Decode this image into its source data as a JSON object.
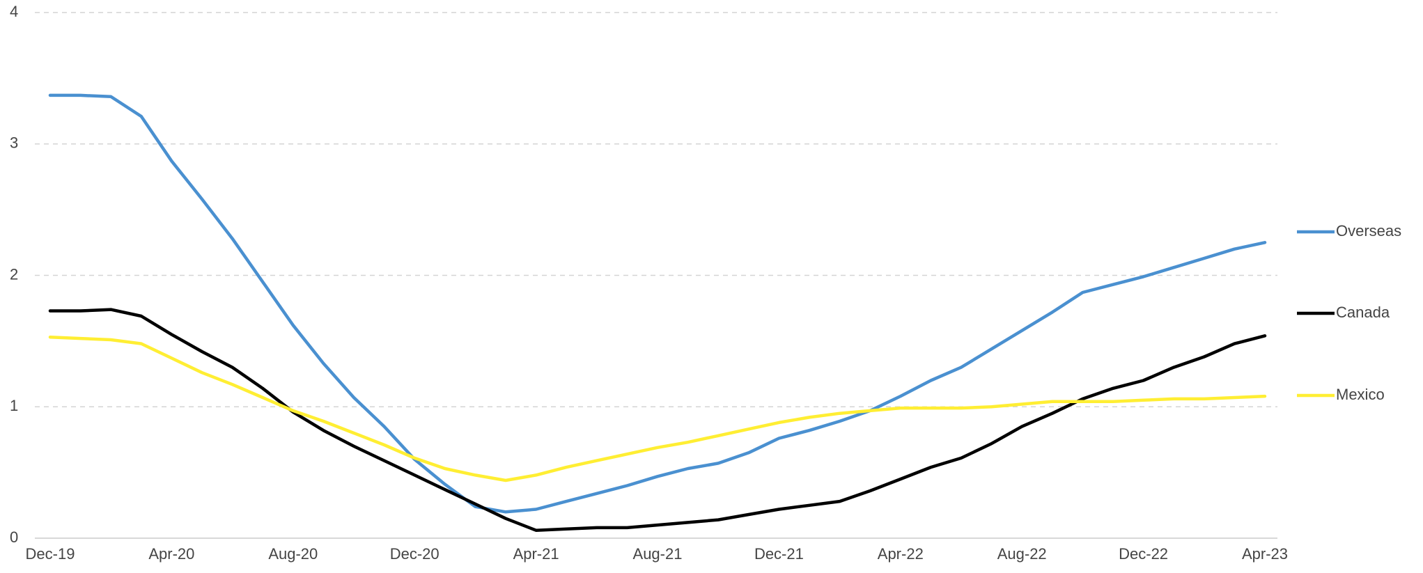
{
  "chart_data": {
    "type": "line",
    "categories": [
      "Dec-19",
      null,
      null,
      null,
      "Apr-20",
      null,
      null,
      null,
      "Aug-20",
      null,
      null,
      null,
      "Dec-20",
      null,
      null,
      null,
      "Apr-21",
      null,
      null,
      null,
      "Aug-21",
      null,
      null,
      null,
      "Dec-21",
      null,
      null,
      null,
      "Apr-22",
      null,
      null,
      null,
      "Aug-22",
      null,
      null,
      null,
      "Dec-22",
      null,
      null,
      null,
      "Apr-23"
    ],
    "series": [
      {
        "name": "Overseas",
        "color": "#4a90d0",
        "values": [
          3.37,
          3.37,
          3.36,
          3.21,
          2.87,
          2.58,
          2.28,
          1.95,
          1.62,
          1.33,
          1.07,
          0.85,
          0.6,
          0.41,
          0.24,
          0.2,
          0.22,
          0.28,
          0.34,
          0.4,
          0.47,
          0.53,
          0.57,
          0.65,
          0.76,
          0.82,
          0.89,
          0.97,
          1.08,
          1.2,
          1.3,
          1.44,
          1.58,
          1.72,
          1.87,
          1.93,
          1.99,
          2.06,
          2.13,
          2.2,
          2.25
        ]
      },
      {
        "name": "Canada",
        "color": "#000000",
        "values": [
          1.73,
          1.73,
          1.74,
          1.69,
          1.55,
          1.42,
          1.3,
          1.14,
          0.96,
          0.82,
          0.7,
          0.59,
          0.48,
          0.37,
          0.26,
          0.15,
          0.06,
          0.07,
          0.08,
          0.08,
          0.1,
          0.12,
          0.14,
          0.18,
          0.22,
          0.25,
          0.28,
          0.36,
          0.45,
          0.54,
          0.61,
          0.72,
          0.85,
          0.95,
          1.06,
          1.14,
          1.2,
          1.3,
          1.38,
          1.48,
          1.54
        ]
      },
      {
        "name": "Mexico",
        "color": "#ffee33",
        "values": [
          1.53,
          1.52,
          1.51,
          1.48,
          1.37,
          1.26,
          1.17,
          1.07,
          0.97,
          0.89,
          0.8,
          0.71,
          0.61,
          0.53,
          0.48,
          0.44,
          0.48,
          0.54,
          0.59,
          0.64,
          0.69,
          0.73,
          0.78,
          0.83,
          0.88,
          0.92,
          0.95,
          0.97,
          0.99,
          0.99,
          0.99,
          1.0,
          1.02,
          1.04,
          1.04,
          1.04,
          1.05,
          1.06,
          1.06,
          1.07,
          1.08
        ]
      }
    ],
    "ylim": [
      0,
      4
    ],
    "yticks": [
      0,
      1,
      2,
      3,
      4
    ],
    "grid": true,
    "legend": "right"
  }
}
